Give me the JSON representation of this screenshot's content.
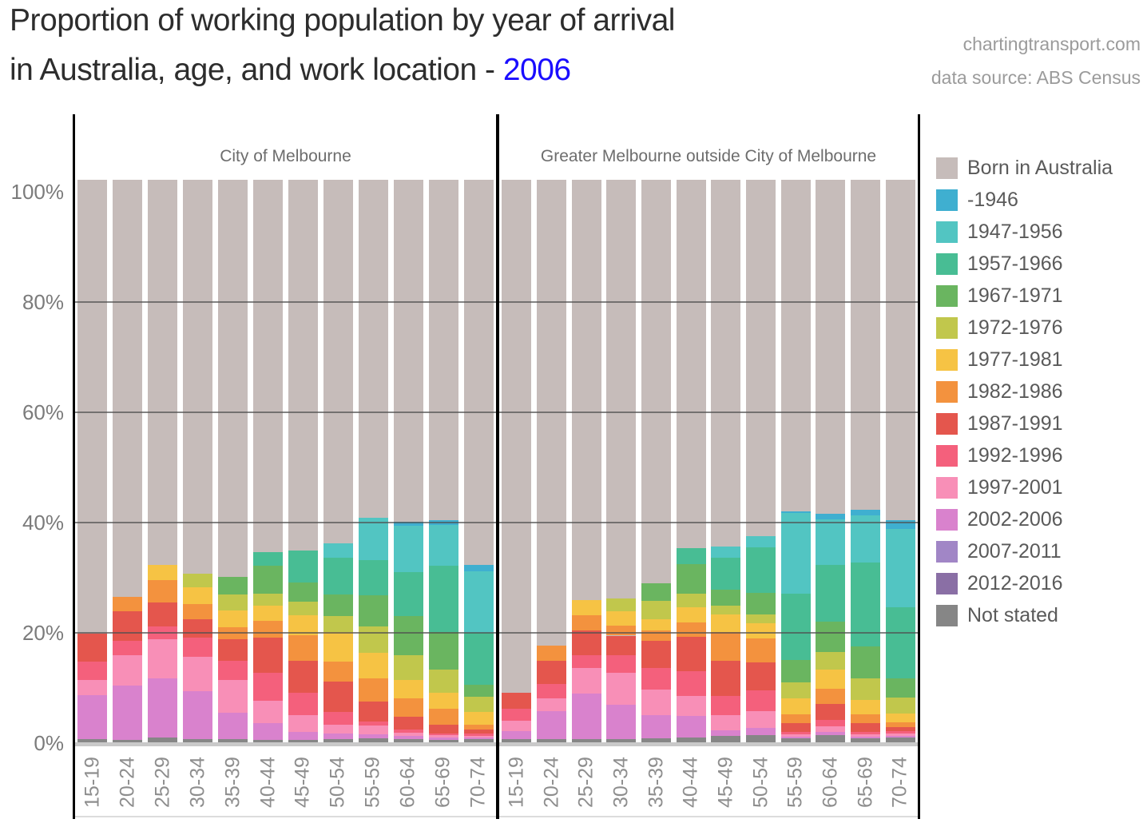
{
  "title": {
    "line1": "Proportion of working population by year of arrival",
    "line2_prefix": "in Australia, age, and work location - ",
    "year": "2006"
  },
  "source": {
    "site": "chartingtransport.com",
    "credit": "data source: ABS Census"
  },
  "accent_colors": {
    "year_blue": "#1a0dff",
    "border_black": "#000000",
    "axis_gray": "#7b7b7b"
  },
  "legend": [
    {
      "label": "Born in Australia",
      "color": "#c6bcba"
    },
    {
      "label": "-1946",
      "color": "#3fafd0"
    },
    {
      "label": "1947-1956",
      "color": "#52c5c2"
    },
    {
      "label": "1957-1966",
      "color": "#48bd94"
    },
    {
      "label": "1967-1971",
      "color": "#6ab560"
    },
    {
      "label": "1972-1976",
      "color": "#c1c74c"
    },
    {
      "label": "1977-1981",
      "color": "#f6c344"
    },
    {
      "label": "1982-1986",
      "color": "#f3923e"
    },
    {
      "label": "1987-1991",
      "color": "#e4564d"
    },
    {
      "label": "1992-1996",
      "color": "#f4607c"
    },
    {
      "label": "1997-2001",
      "color": "#f88fb7"
    },
    {
      "label": "2002-2006",
      "color": "#d982cd"
    },
    {
      "label": "2007-2011",
      "color": "#a186c6"
    },
    {
      "label": "2012-2016",
      "color": "#8a6fa5"
    },
    {
      "label": "Not stated",
      "color": "#868686"
    }
  ],
  "y_axis": {
    "ticks": [
      {
        "label": "100%",
        "percent": 100
      },
      {
        "label": "80%",
        "percent": 80
      },
      {
        "label": "60%",
        "percent": 60
      },
      {
        "label": "40%",
        "percent": 40
      },
      {
        "label": "20%",
        "percent": 20
      },
      {
        "label": "0%",
        "percent": 0
      }
    ]
  },
  "chart_data": {
    "type": "bar",
    "stacked": true,
    "units": "percent of working population",
    "ylim": [
      0,
      100
    ],
    "gridlines_percent": [
      20,
      40,
      60,
      80
    ],
    "remainder_series": "Born in Australia",
    "remainder_note": "Born in Australia fills the bar from the stack top to 100%",
    "categories": [
      "15-19",
      "20-24",
      "25-29",
      "30-34",
      "35-39",
      "40-44",
      "45-49",
      "50-54",
      "55-59",
      "60-64",
      "65-69",
      "70-74"
    ],
    "panels": [
      {
        "title": "City of Melbourne",
        "series": [
          {
            "name": "Not stated",
            "values": [
              0.7,
              0.6,
              1.0,
              0.7,
              0.7,
              0.6,
              0.6,
              0.7,
              0.9,
              0.8,
              0.6,
              0.8
            ]
          },
          {
            "name": "2002-2006",
            "values": [
              8.0,
              9.8,
              10.8,
              8.7,
              4.8,
              3.0,
              1.4,
              1.0,
              0.7,
              0.5,
              0.4,
              0.2
            ]
          },
          {
            "name": "1997-2001",
            "values": [
              2.7,
              5.5,
              7.0,
              6.3,
              6.0,
              4.1,
              3.1,
              1.7,
              1.6,
              0.6,
              0.4,
              0.3
            ]
          },
          {
            "name": "1992-1996",
            "values": [
              3.4,
              2.6,
              2.4,
              3.4,
              3.4,
              5.1,
              4.1,
              2.2,
              0.7,
              0.6,
              0.4,
              0.4
            ]
          },
          {
            "name": "1987-1991",
            "values": [
              5.1,
              5.4,
              4.3,
              3.4,
              3.9,
              6.3,
              5.8,
              5.6,
              3.6,
              2.3,
              1.6,
              0.8
            ]
          },
          {
            "name": "1982-1986",
            "values": [
              0,
              2.7,
              4.1,
              2.7,
              2.2,
              3.1,
              4.6,
              3.6,
              4.3,
              3.3,
              2.8,
              0.8
            ]
          },
          {
            "name": "1977-1981",
            "values": [
              0,
              0,
              2.7,
              3.1,
              3.1,
              2.7,
              3.6,
              5.3,
              4.6,
              3.4,
              2.9,
              2.3
            ]
          },
          {
            "name": "1972-1976",
            "values": [
              0,
              0,
              0,
              2.4,
              2.9,
              2.2,
              2.4,
              2.9,
              4.8,
              4.4,
              4.3,
              2.8
            ]
          },
          {
            "name": "1967-1971",
            "values": [
              0,
              0,
              0,
              0,
              3.1,
              5.1,
              3.6,
              3.9,
              5.6,
              7.1,
              6.8,
              2.2
            ]
          },
          {
            "name": "1957-1966",
            "values": [
              0,
              0,
              0,
              0,
              0,
              2.4,
              5.7,
              6.8,
              6.4,
              8.0,
              12.0,
              9.4
            ]
          },
          {
            "name": "1947-1956",
            "values": [
              0,
              0,
              0,
              0,
              0,
              0,
              0,
              2.5,
              7.7,
              8.4,
              7.3,
              11.1
            ]
          },
          {
            "name": "-1946",
            "values": [
              0,
              0,
              0,
              0,
              0,
              0,
              0,
              0,
              0,
              0.7,
              0.9,
              1.2
            ]
          }
        ]
      },
      {
        "title": "Greater Melbourne outside City of Melbourne",
        "series": [
          {
            "name": "Not stated",
            "values": [
              0.7,
              0.7,
              0.8,
              0.7,
              0.9,
              1.0,
              1.3,
              1.4,
              0.9,
              1.4,
              0.9,
              1.0
            ]
          },
          {
            "name": "2002-2006",
            "values": [
              1.5,
              5.1,
              8.2,
              6.3,
              4.2,
              4.0,
              1.0,
              1.4,
              0.3,
              0.6,
              0.3,
              0.3
            ]
          },
          {
            "name": "1997-2001",
            "values": [
              1.8,
              2.3,
              4.7,
              5.8,
              4.6,
              3.5,
              2.8,
              3.0,
              0.4,
              1.0,
              0.4,
              0.4
            ]
          },
          {
            "name": "1992-1996",
            "values": [
              2.2,
              2.7,
              2.2,
              3.1,
              4.0,
              4.6,
              3.4,
              3.8,
              0.5,
              1.2,
              0.5,
              0.5
            ]
          },
          {
            "name": "1987-1991",
            "values": [
              2.9,
              4.1,
              4.5,
              3.6,
              4.8,
              6.2,
              6.5,
              5.1,
              1.6,
              2.9,
              1.5,
              0.7
            ]
          },
          {
            "name": "1982-1986",
            "values": [
              0,
              2.8,
              2.8,
              1.8,
              2.0,
              2.6,
              5.1,
              4.3,
              1.5,
              2.7,
              1.6,
              0.9
            ]
          },
          {
            "name": "1977-1981",
            "values": [
              0,
              0,
              2.8,
              2.6,
              1.9,
              2.8,
              3.3,
              2.8,
              2.9,
              3.5,
              2.6,
              1.6
            ]
          },
          {
            "name": "1972-1976",
            "values": [
              0,
              0,
              0,
              2.3,
              3.4,
              2.4,
              1.5,
              1.5,
              2.9,
              3.2,
              4.0,
              2.9
            ]
          },
          {
            "name": "1967-1971",
            "values": [
              0,
              0,
              0,
              0,
              3.2,
              5.4,
              3.0,
              3.9,
              4.1,
              5.5,
              5.7,
              3.4
            ]
          },
          {
            "name": "1957-1966",
            "values": [
              0,
              0,
              0,
              0,
              0,
              2.8,
              5.8,
              8.3,
              12.0,
              10.3,
              15.3,
              13.0
            ]
          },
          {
            "name": "1947-1956",
            "values": [
              0,
              0,
              0,
              0,
              0,
              0,
              2.0,
              2.0,
              14.7,
              8.3,
              8.5,
              14.2
            ]
          },
          {
            "name": "-1946",
            "values": [
              0,
              0,
              0,
              0,
              0,
              0,
              0,
              0,
              0.3,
              1.0,
              1.0,
              1.6
            ]
          }
        ]
      }
    ]
  }
}
